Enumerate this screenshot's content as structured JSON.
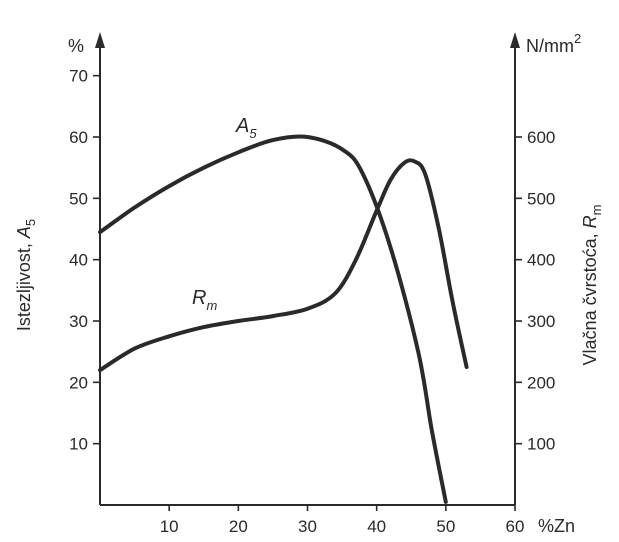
{
  "chart_data": {
    "type": "line",
    "x_axis": {
      "ticks": [
        10,
        20,
        30,
        40,
        50,
        60
      ],
      "unit_label": "%Zn",
      "range": [
        0,
        60
      ]
    },
    "y_left": {
      "unit": "%",
      "title_text": "Istezljivost, ",
      "title_symbol": "A",
      "title_subscript": "5",
      "ticks": [
        10,
        20,
        30,
        40,
        50,
        60,
        70
      ],
      "range": [
        0,
        75
      ]
    },
    "y_right": {
      "unit": "N/mm",
      "unit_superscript": "2",
      "title_text": "Vlačna čvrstoća, ",
      "title_symbol": "R",
      "title_subscript": "m",
      "ticks": [
        100,
        200,
        300,
        400,
        500,
        600
      ],
      "range": [
        0,
        750
      ]
    },
    "series": [
      {
        "name_symbol": "A",
        "name_subscript": "5",
        "axis": "left",
        "color": "#2a2a2a",
        "x": [
          0,
          5,
          10,
          15,
          20,
          25,
          30,
          35,
          38,
          42,
          46,
          48,
          50
        ],
        "y": [
          44.5,
          48.5,
          52,
          55,
          57.5,
          59.5,
          60,
          58,
          54,
          42,
          25,
          12,
          0.5
        ]
      },
      {
        "name_symbol": "R",
        "name_subscript": "m",
        "axis": "right",
        "color": "#2a2a2a",
        "x": [
          0,
          5,
          10,
          15,
          20,
          25,
          30,
          34,
          37,
          40,
          42,
          44,
          45.5,
          47,
          49,
          51,
          53
        ],
        "y": [
          220,
          255,
          275,
          290,
          300,
          308,
          320,
          345,
          400,
          480,
          530,
          558,
          560,
          540,
          450,
          330,
          225
        ]
      }
    ],
    "grid": false,
    "legend": "none"
  }
}
